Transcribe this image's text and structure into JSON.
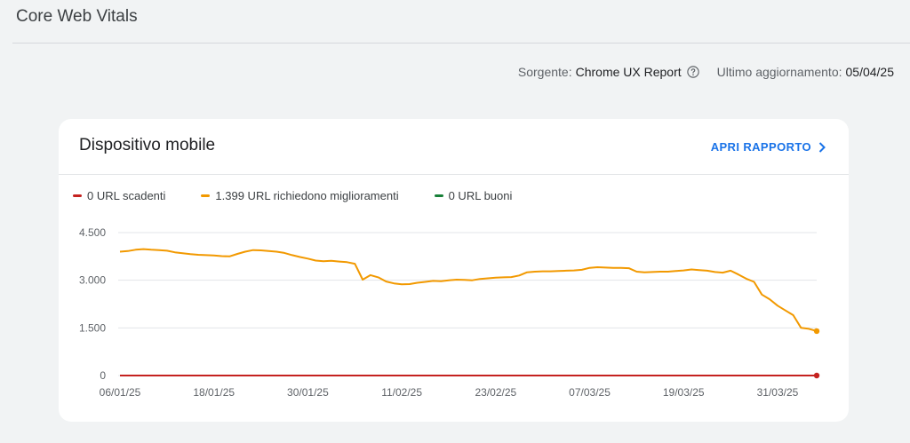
{
  "page": {
    "title": "Core Web Vitals"
  },
  "meta": {
    "source_label": "Sorgente:",
    "source_value": "Chrome UX Report",
    "updated_label": "Ultimo aggiornamento:",
    "updated_value": "05/04/25",
    "help_icon": "help-circle-icon"
  },
  "card": {
    "title": "Dispositivo mobile",
    "open_report_label": "APRI RAPPORTO",
    "open_report_icon": "chevron-right-icon"
  },
  "legend": [
    {
      "label": "0 URL scadenti",
      "color": "#c5221f"
    },
    {
      "label": "1.399 URL richiedono miglioramenti",
      "color": "#f29900"
    },
    {
      "label": "0 URL buoni",
      "color": "#188038"
    }
  ],
  "chart_data": {
    "type": "line",
    "title": "",
    "xlabel": "",
    "ylabel": "",
    "ylim": [
      0,
      4500
    ],
    "yticks": [
      0,
      1500,
      3000,
      4500
    ],
    "ytick_labels": [
      "0",
      "1.500",
      "3.000",
      "4.500"
    ],
    "x_tick_labels": [
      "06/01/25",
      "18/01/25",
      "30/01/25",
      "11/02/25",
      "23/02/25",
      "07/03/25",
      "19/03/25",
      "31/03/25"
    ],
    "x_tick_index": [
      0,
      12,
      24,
      36,
      48,
      60,
      72,
      84
    ],
    "n_points": 90,
    "grid": true,
    "series": [
      {
        "name": "URL richiedono miglioramenti",
        "color": "#f29900",
        "values": [
          3900,
          3920,
          3960,
          3980,
          3960,
          3950,
          3930,
          3880,
          3850,
          3820,
          3800,
          3790,
          3780,
          3760,
          3750,
          3830,
          3900,
          3950,
          3940,
          3920,
          3900,
          3860,
          3790,
          3730,
          3680,
          3620,
          3600,
          3610,
          3590,
          3570,
          3520,
          3020,
          3160,
          3090,
          2960,
          2900,
          2870,
          2880,
          2920,
          2950,
          2980,
          2970,
          3000,
          3020,
          3010,
          3000,
          3040,
          3060,
          3080,
          3090,
          3100,
          3150,
          3250,
          3270,
          3280,
          3280,
          3290,
          3300,
          3310,
          3330,
          3390,
          3410,
          3400,
          3390,
          3390,
          3380,
          3270,
          3250,
          3260,
          3270,
          3270,
          3290,
          3310,
          3340,
          3320,
          3300,
          3260,
          3240,
          3300,
          3180,
          3050,
          2950,
          2550,
          2400,
          2200,
          2050,
          1900,
          1500,
          1470,
          1399
        ],
        "end_marker": true
      },
      {
        "name": "URL scadenti",
        "color": "#c5221f",
        "values": [
          0,
          0,
          0,
          0,
          0,
          0,
          0,
          0,
          0,
          0,
          0,
          0,
          0,
          0,
          0,
          0,
          0,
          0,
          0,
          0,
          0,
          0,
          0,
          0,
          0,
          0,
          0,
          0,
          0,
          0,
          0,
          0,
          0,
          0,
          0,
          0,
          0,
          0,
          0,
          0,
          0,
          0,
          0,
          0,
          0,
          0,
          0,
          0,
          0,
          0,
          0,
          0,
          0,
          0,
          0,
          0,
          0,
          0,
          0,
          0,
          0,
          0,
          0,
          0,
          0,
          0,
          0,
          0,
          0,
          0,
          0,
          0,
          0,
          0,
          0,
          0,
          0,
          0,
          0,
          0,
          0,
          0,
          0,
          0,
          0,
          0,
          0,
          0,
          0,
          0
        ],
        "end_marker": true
      },
      {
        "name": "URL buoni",
        "color": "#188038",
        "values": [
          0,
          0,
          0,
          0,
          0,
          0,
          0,
          0,
          0,
          0,
          0,
          0,
          0,
          0,
          0,
          0,
          0,
          0,
          0,
          0,
          0,
          0,
          0,
          0,
          0,
          0,
          0,
          0,
          0,
          0,
          0,
          0,
          0,
          0,
          0,
          0,
          0,
          0,
          0,
          0,
          0,
          0,
          0,
          0,
          0,
          0,
          0,
          0,
          0,
          0,
          0,
          0,
          0,
          0,
          0,
          0,
          0,
          0,
          0,
          0,
          0,
          0,
          0,
          0,
          0,
          0,
          0,
          0,
          0,
          0,
          0,
          0,
          0,
          0,
          0,
          0,
          0,
          0,
          0,
          0,
          0,
          0,
          0,
          0,
          0,
          0,
          0,
          0,
          0,
          0
        ],
        "end_marker": false
      }
    ]
  }
}
